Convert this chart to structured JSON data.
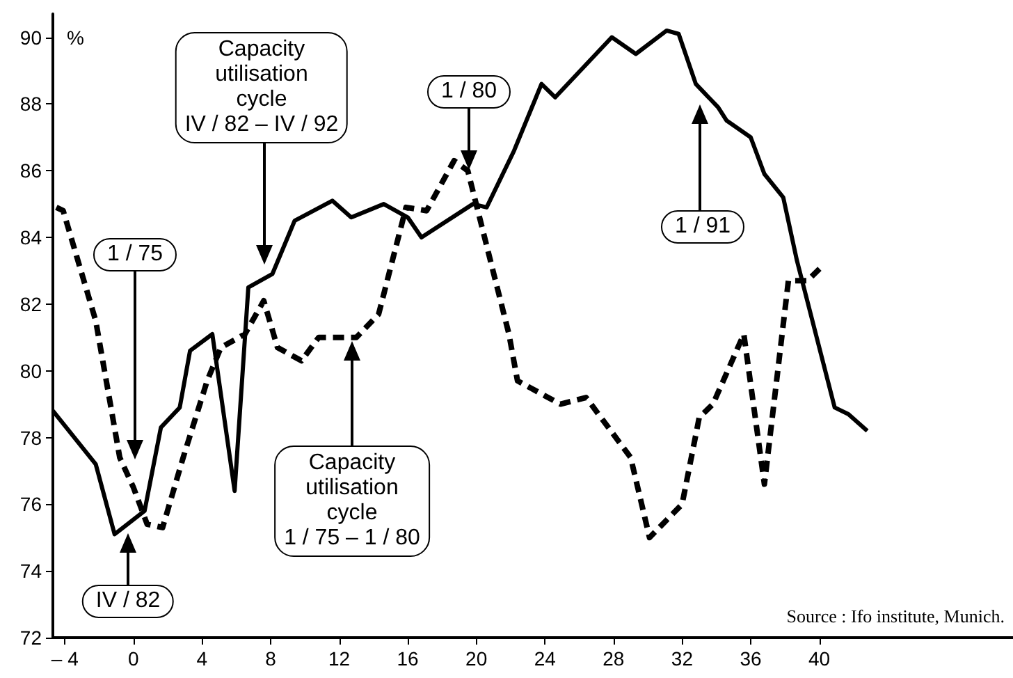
{
  "chart_data": {
    "type": "line",
    "ylabel": "%",
    "xlim": [
      -4.7,
      51.3
    ],
    "xticks": [
      {
        "value": -4,
        "label": "– 4"
      },
      0,
      4,
      8,
      12,
      16,
      20,
      24,
      28,
      32,
      36,
      40
    ],
    "ylim": [
      72,
      90.7
    ],
    "yticks": [
      72,
      74,
      76,
      78,
      80,
      82,
      84,
      86,
      88,
      90
    ],
    "grid": false,
    "marker": "none",
    "series": [
      {
        "color": "#000000",
        "line_style": "solid",
        "x": [
          -4.7,
          -2.2,
          -1.1,
          0.65,
          1.6,
          2.7,
          3.3,
          4.6,
          5.9,
          6.7,
          8.1,
          9.4,
          11.6,
          12.7,
          14.6,
          16,
          16.8,
          19.8,
          20.6,
          22.2,
          23.8,
          24.6,
          27.9,
          29.3,
          31.1,
          31.8,
          32.8,
          34.1,
          34.6,
          36,
          36.8,
          37.9,
          38.7,
          40.9,
          41.7,
          42.8
        ],
        "values": [
          78.8,
          77.2,
          75.1,
          75.8,
          78.3,
          78.9,
          80.6,
          81.1,
          76.4,
          82.5,
          82.9,
          84.5,
          85.1,
          84.6,
          85.0,
          84.6,
          84.0,
          85.0,
          84.9,
          86.6,
          88.6,
          88.2,
          90.0,
          89.5,
          90.2,
          90.1,
          88.6,
          87.9,
          87.5,
          87.0,
          85.9,
          85.2,
          83.3,
          78.9,
          78.7,
          78.2
        ]
      },
      {
        "color": "#000000",
        "line_style": "dashed",
        "x": [
          -4.5,
          -4.1,
          -2.2,
          -0.8,
          0,
          0.8,
          1.7,
          2.9,
          4.3,
          5.1,
          6.5,
          7.6,
          8.4,
          9.8,
          10.8,
          13.0,
          14.3,
          15.9,
          17.1,
          18.7,
          19.5,
          21.9,
          22.4,
          24.9,
          26.4,
          29.0,
          30.1,
          32.0,
          33.0,
          33.8,
          35.6,
          36.8,
          38.2,
          39.3,
          40.1
        ],
        "values": [
          84.9,
          84.8,
          81.5,
          77.4,
          76.5,
          75.4,
          75.3,
          77.4,
          79.7,
          80.7,
          81.1,
          82.1,
          80.7,
          80.3,
          81.0,
          81.0,
          81.7,
          84.9,
          84.8,
          86.3,
          86.0,
          81.1,
          79.7,
          79.0,
          79.2,
          77.4,
          75.0,
          76.0,
          78.6,
          79.0,
          81.1,
          76.6,
          82.7,
          82.7,
          83.1
        ]
      }
    ],
    "annotations": [
      "Capacity\nutilisation\ncycle\nIV / 82 – IV / 92",
      "1 / 75",
      "IV / 82",
      "Capacity\nutilisation\ncycle\n1 / 75 – 1 / 80",
      "1 / 80",
      "1 / 91",
      "Source : Ifo institute, Munich."
    ]
  }
}
